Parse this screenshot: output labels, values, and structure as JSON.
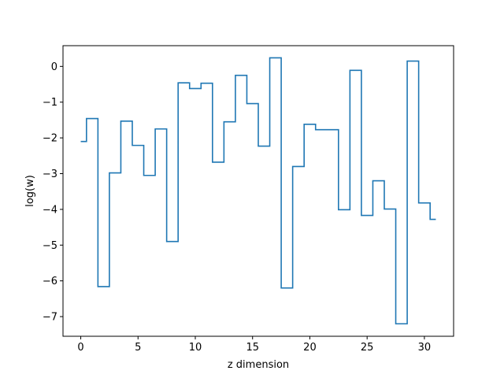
{
  "chart_data": {
    "type": "line",
    "drawstyle": "steps-mid",
    "xlabel": "z dimension",
    "ylabel": "log(w)",
    "xlim": [
      -1.55,
      32.55
    ],
    "ylim": [
      -7.55,
      0.58
    ],
    "xticks": [
      0,
      5,
      10,
      15,
      20,
      25,
      30
    ],
    "yticks": [
      0,
      -1,
      -2,
      -3,
      -4,
      -5,
      -6,
      -7
    ],
    "xtick_labels": [
      "0",
      "5",
      "10",
      "15",
      "20",
      "25",
      "30"
    ],
    "ytick_labels": [
      "0",
      "−1",
      "−2",
      "−3",
      "−4",
      "−5",
      "−6",
      "−7"
    ],
    "grid": false,
    "line_color": "#1f77b4",
    "series": [
      {
        "x": [
          0,
          1,
          2,
          3,
          4,
          5,
          6,
          7,
          8,
          9,
          10,
          11,
          12,
          13,
          14,
          15,
          16,
          17,
          18,
          19,
          20,
          21,
          22,
          23,
          24,
          25,
          26,
          27,
          28,
          29,
          30,
          31
        ],
        "values": [
          -2.1,
          -1.46,
          -6.16,
          -2.98,
          -1.53,
          -2.21,
          -3.05,
          -1.75,
          -4.9,
          -0.46,
          -0.62,
          -0.47,
          -2.68,
          -1.55,
          -0.25,
          -1.04,
          -2.23,
          0.24,
          -6.2,
          -2.8,
          -1.62,
          -1.77,
          -1.77,
          -4.01,
          -0.11,
          -4.17,
          -3.2,
          -3.99,
          -7.2,
          0.15,
          -3.82,
          -4.28
        ]
      }
    ]
  }
}
